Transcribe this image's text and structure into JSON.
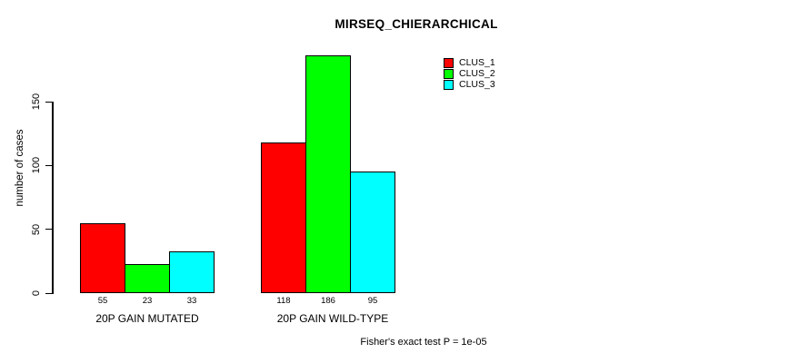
{
  "chart_data": {
    "type": "bar",
    "title": "MIRSEQ_CHIERARCHICAL",
    "ylabel": "number of cases",
    "xlabel": "",
    "categories": [
      "20P GAIN MUTATED",
      "20P GAIN WILD-TYPE"
    ],
    "series": [
      {
        "name": "CLUS_1",
        "color": "#ff0000",
        "values": [
          55,
          118
        ]
      },
      {
        "name": "CLUS_2",
        "color": "#00ff00",
        "values": [
          23,
          186
        ]
      },
      {
        "name": "CLUS_3",
        "color": "#00ffff",
        "values": [
          33,
          95
        ]
      }
    ],
    "bar_value_labels": [
      [
        55,
        23,
        33
      ],
      [
        118,
        186,
        95
      ]
    ],
    "yticks": [
      0,
      50,
      100,
      150
    ],
    "ylim": [
      0,
      186
    ],
    "grid": false,
    "legend_position": "top-right",
    "bar_border_color": "#000000",
    "footnote": "Fisher's exact test P = 1e-05"
  }
}
